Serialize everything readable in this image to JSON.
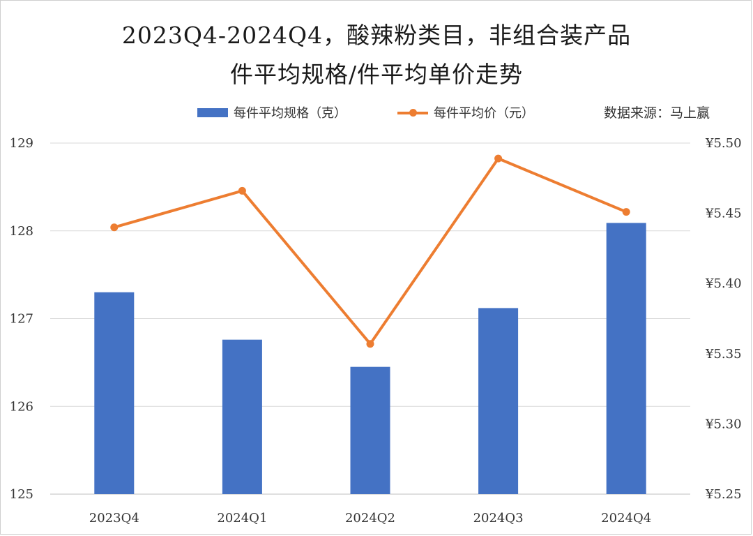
{
  "title_line1": "2023Q4-2024Q4，酸辣粉类目，非组合装产品",
  "title_line2": "件平均规格/件平均单价走势",
  "source": "数据来源：马上赢",
  "colors": {
    "bar": "#4472C4",
    "line": "#ED7D31",
    "grid": "#d9d9d9"
  },
  "chart_data": {
    "type": "bar",
    "categories": [
      "2023Q4",
      "2024Q1",
      "2024Q2",
      "2024Q3",
      "2024Q4"
    ],
    "series": [
      {
        "name": "每件平均规格（克）",
        "type": "bar",
        "axis": "left",
        "values": [
          127.3,
          126.76,
          126.45,
          127.12,
          128.09
        ]
      },
      {
        "name": "每件平均价（元）",
        "type": "line",
        "axis": "right",
        "values": [
          5.44,
          5.466,
          5.357,
          5.489,
          5.451
        ]
      }
    ],
    "y_left": {
      "ylim": [
        125,
        129
      ],
      "ticks": [
        "125",
        "126",
        "127",
        "128",
        "129"
      ]
    },
    "y_right": {
      "ylim": [
        5.25,
        5.5
      ],
      "ticks": [
        "¥5.25",
        "¥5.30",
        "¥5.35",
        "¥5.40",
        "¥5.45",
        "¥5.50"
      ]
    },
    "grid": true,
    "legend_position": "top"
  }
}
